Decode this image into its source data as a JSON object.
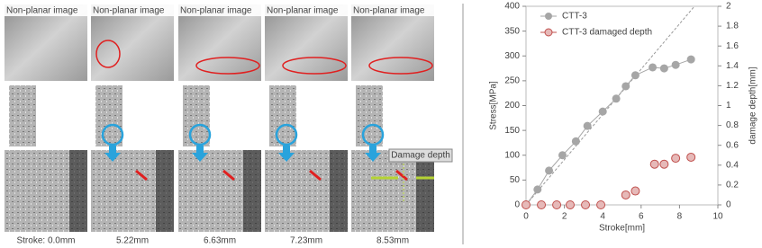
{
  "figure": {
    "image_labels": [
      "Non-planar image",
      "Non-planar image",
      "Non-planar image",
      "Non-planar image",
      "Non-planar image"
    ],
    "strokes": [
      "Stroke: 0.0mm",
      "5.22mm",
      "6.63mm",
      "7.23mm",
      "8.53mm"
    ],
    "annotation": "Damage depth"
  },
  "chart_data": {
    "type": "scatter",
    "x_label": "Stroke[mm]",
    "y_label": "Stress[MPa]",
    "y2_label": "damage depth[mm]",
    "xlim": [
      0,
      10
    ],
    "xticks": [
      0,
      2,
      4,
      6,
      8,
      10
    ],
    "ylim": [
      0,
      400
    ],
    "yticks": [
      0,
      50,
      100,
      150,
      200,
      250,
      300,
      350,
      400
    ],
    "y2lim": [
      0,
      2
    ],
    "y2ticks": [
      0,
      0.2,
      0.4,
      0.6,
      0.8,
      1,
      1.2,
      1.4,
      1.6,
      1.8,
      2
    ],
    "legend": "upper left",
    "series": [
      {
        "name": "CTT-3",
        "color": "#a6a6a6",
        "x": [
          0,
          0.6,
          1.2,
          1.9,
          2.6,
          3.2,
          4.0,
          4.7,
          5.2,
          5.7,
          6.6,
          7.2,
          7.8,
          8.6
        ],
        "values": [
          0,
          31,
          69,
          100,
          128,
          159,
          188,
          214,
          239,
          261,
          277,
          275,
          282,
          293
        ]
      },
      {
        "name": "CTT-3 damaged depth",
        "color": "#c0504d",
        "axis": "y2",
        "x": [
          0,
          0.8,
          1.6,
          2.3,
          3.1,
          3.9,
          5.2,
          5.7,
          6.7,
          7.2,
          7.8,
          8.6
        ],
        "values": [
          0,
          0,
          0,
          0,
          0,
          0,
          0.1,
          0.14,
          0.41,
          0.41,
          0.47,
          0.48
        ]
      }
    ]
  }
}
